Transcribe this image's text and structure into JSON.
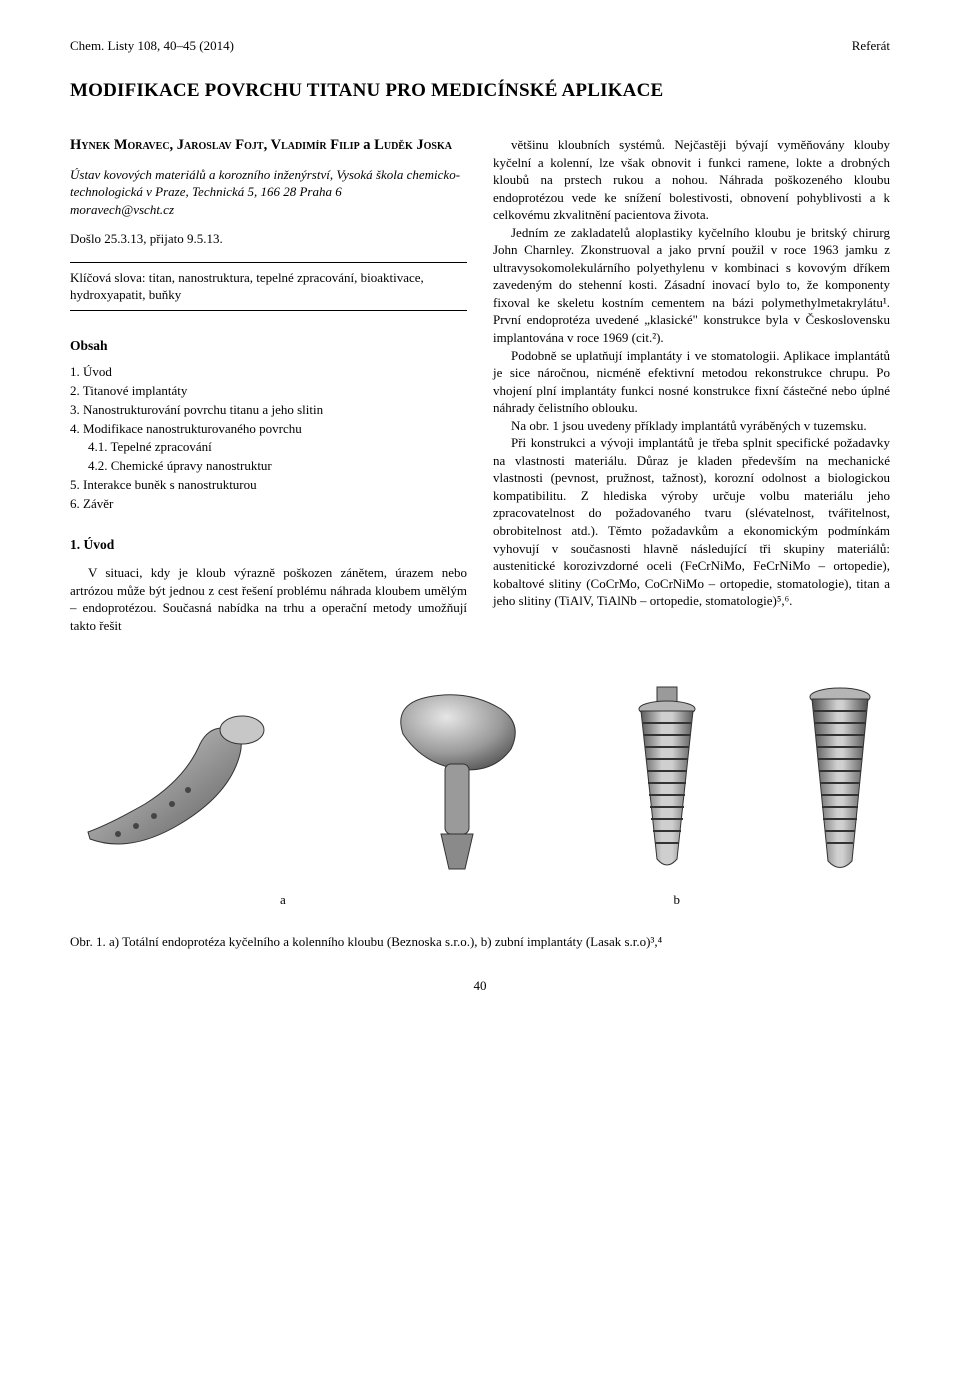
{
  "header": {
    "left": "Chem. Listy 108, 40–45 (2014)",
    "right": "Referát"
  },
  "title": "MODIFIKACE POVRCHU TITANU PRO MEDICÍNSKÉ APLIKACE",
  "authors_html": "H<span class='sc'>ynek</span> M<span class='sc'>oravec</span>, J<span class='sc'>aroslav</span> F<span class='sc'>ojt</span>, V<span class='sc'>ladimír</span> F<span class='sc'>ilip</span> a L<span class='sc'>uděk</span> J<span class='sc'>oska</span>",
  "affiliation": "Ústav kovových materiálů a korozního inženýrství, Vysoká škola chemicko-technologická v Praze, Technická 5, 166 28 Praha 6",
  "email": "moravech@vscht.cz",
  "dates": "Došlo 25.3.13, přijato 9.5.13.",
  "keywords": "Klíčová slova: titan, nanostruktura, tepelné zpracování, bioaktivace, hydroxyapatit, buňky",
  "obsah_heading": "Obsah",
  "toc": [
    {
      "text": "1. Úvod",
      "indent": false
    },
    {
      "text": "2. Titanové implantáty",
      "indent": false
    },
    {
      "text": "3. Nanostrukturování povrchu titanu a jeho slitin",
      "indent": false
    },
    {
      "text": "4. Modifikace nanostrukturovaného povrchu",
      "indent": false
    },
    {
      "text": "4.1. Tepelné zpracování",
      "indent": true
    },
    {
      "text": "4.2. Chemické úpravy nanostruktur",
      "indent": true
    },
    {
      "text": "5. Interakce buněk s nanostrukturou",
      "indent": false
    },
    {
      "text": "6. Závěr",
      "indent": false
    }
  ],
  "section1_heading": "1. Úvod",
  "left_paragraph": "V situaci, kdy je kloub výrazně poškozen zánětem, úrazem nebo artrózou může být jednou z cest řešení problému náhrada kloubem umělým – endoprotézou. Současná nabídka na trhu a operační metody umožňují takto řešit",
  "right_paragraphs": [
    "většinu kloubních systémů. Nejčastěji bývají vyměňovány klouby kyčelní a kolenní, lze však obnovit i funkci ramene, lokte a drobných kloubů na prstech rukou a nohou. Náhrada poškozeného kloubu endoprotézou vede ke snížení bolestivosti, obnovení pohyblivosti a k celkovému zkvalitnění pacientova života.",
    "Jedním ze zakladatelů aloplastiky kyčelního kloubu je britský chirurg John Charnley. Zkonstruoval a jako první použil v roce 1963 jamku z ultravysokomolekulárního polyethylenu v kombinaci s kovovým dříkem zavedeným do stehenní kosti. Zásadní inovací bylo to, že komponenty fixoval ke skeletu kostním cementem na bázi polymethylmetakrylátu¹. První endoprotéza uvedené „klasické\" konstrukce byla v Československu implantována v roce 1969 (cit.²).",
    "Podobně se uplatňují implantáty i ve stomatologii. Aplikace implantátů je sice náročnou, nicméně efektivní metodou rekonstrukce chrupu. Po vhojení plní implantáty funkci nosné konstrukce fixní částečné nebo úplné náhrady čelistního oblouku.",
    "Na obr. 1 jsou uvedeny příklady implantátů vyráběných v tuzemsku.",
    "Při konstrukci a vývoji implantátů je třeba splnit specifické požadavky na vlastnosti materiálu. Důraz je kladen především na mechanické vlastnosti (pevnost, pružnost, tažnost), korozní odolnost a biologickou kompatibilitu. Z hlediska výroby určuje volbu materiálu jeho zpracovatelnost do požadovaného tvaru (slévatelnost, tvářitelnost, obrobitelnost atd.). Těmto požadavkům a ekonomickým podmínkám vyhovují v současnosti hlavně následující tři skupiny materiálů: austenitické korozivzdorné oceli (FeCrNiMo, FeCrNiMo – ortopedie), kobaltové slitiny (CoCrMo, CoCrNiMo – ortopedie, stomatologie), titan a jeho slitiny (TiAlV, TiAlNb – ortopedie, stomatologie)⁵,⁶."
  ],
  "figure": {
    "label_a": "a",
    "label_b": "b",
    "caption": "Obr. 1. a) Totální endoprotéza kyčelního a kolenního kloubu (Beznoska s.r.o.), b) zubní implantáty (Lasak s.r.o)³,⁴"
  },
  "page_number": "40",
  "colors": {
    "background": "#ffffff",
    "text": "#000000",
    "implant_metal_light": "#c7c7c7",
    "implant_metal_mid": "#9a9a9a",
    "implant_metal_dark": "#5c5c5c",
    "implant_edge": "#333333"
  }
}
